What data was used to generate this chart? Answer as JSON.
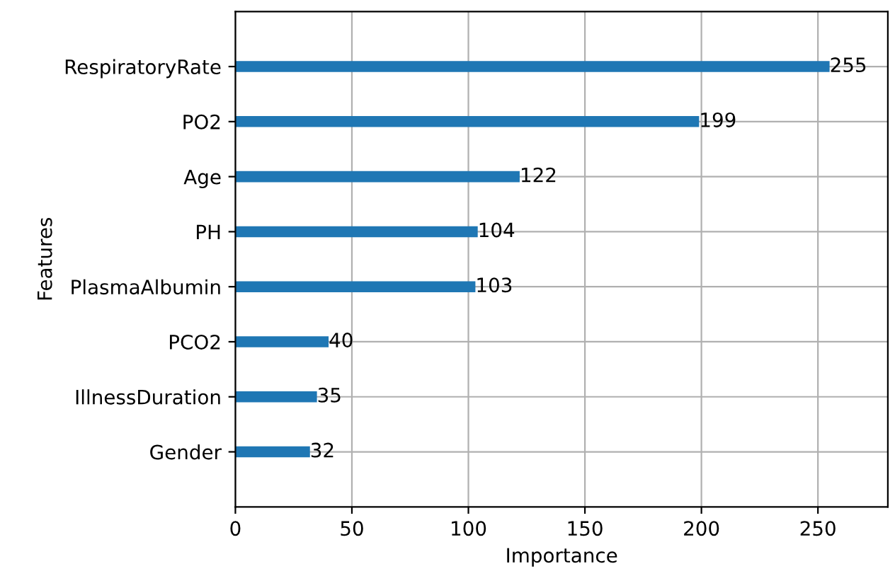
{
  "chart_data": {
    "type": "bar",
    "orientation": "horizontal",
    "xlabel": "Importance",
    "ylabel": "Features",
    "categories": [
      "RespiratoryRate",
      "PO2",
      "Age",
      "PH",
      "PlasmaAlbumin",
      "PCO2",
      "IllnessDuration",
      "Gender"
    ],
    "values": [
      255,
      199,
      122,
      104,
      103,
      40,
      35,
      32
    ],
    "color": "#1f77b4",
    "xlim": [
      0,
      280
    ],
    "xticks": [
      0,
      50,
      100,
      150,
      200,
      250
    ],
    "grid": true,
    "data_labels": true
  }
}
